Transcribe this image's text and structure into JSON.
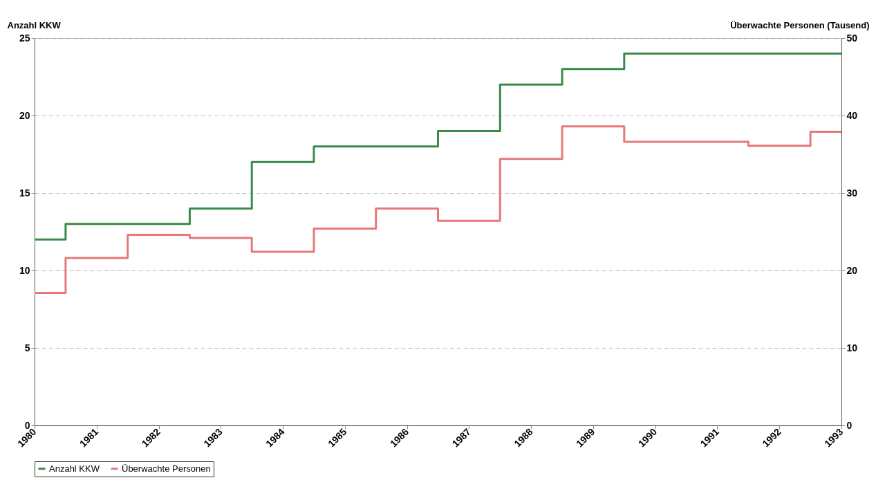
{
  "chart_data": {
    "type": "step",
    "ylabel": "Anzahl KKW",
    "y2label": "Überwachte Personen (Tausend)",
    "x": [
      1980,
      1981,
      1982,
      1983,
      1984,
      1985,
      1986,
      1987,
      1988,
      1989,
      1990,
      1991,
      1992,
      1993
    ],
    "series": [
      {
        "name": "Anzahl KKW",
        "color": "#3a8a4a",
        "values": [
          12,
          13,
          13,
          14,
          17,
          18,
          18,
          19,
          22,
          23,
          24,
          24,
          24,
          24
        ]
      },
      {
        "name": "Überwachte Personen",
        "color": "#e87878",
        "axis": "y2",
        "values": [
          17.1,
          21.6,
          24.6,
          24.2,
          22.4,
          25.4,
          28.0,
          26.4,
          34.4,
          38.6,
          36.6,
          36.6,
          36.1,
          37.9
        ]
      }
    ],
    "xlim": [
      1980,
      1993
    ],
    "xticks": [
      1980,
      1981,
      1982,
      1983,
      1984,
      1985,
      1986,
      1987,
      1988,
      1989,
      1990,
      1991,
      1992,
      1993
    ],
    "ylim": [
      0,
      25
    ],
    "yticks": [
      0,
      5,
      10,
      15,
      20,
      25
    ],
    "y2lim": [
      0,
      50
    ],
    "y2ticks": [
      0,
      10,
      20,
      30,
      40,
      50
    ],
    "grid": "y",
    "legend": "bottom"
  }
}
